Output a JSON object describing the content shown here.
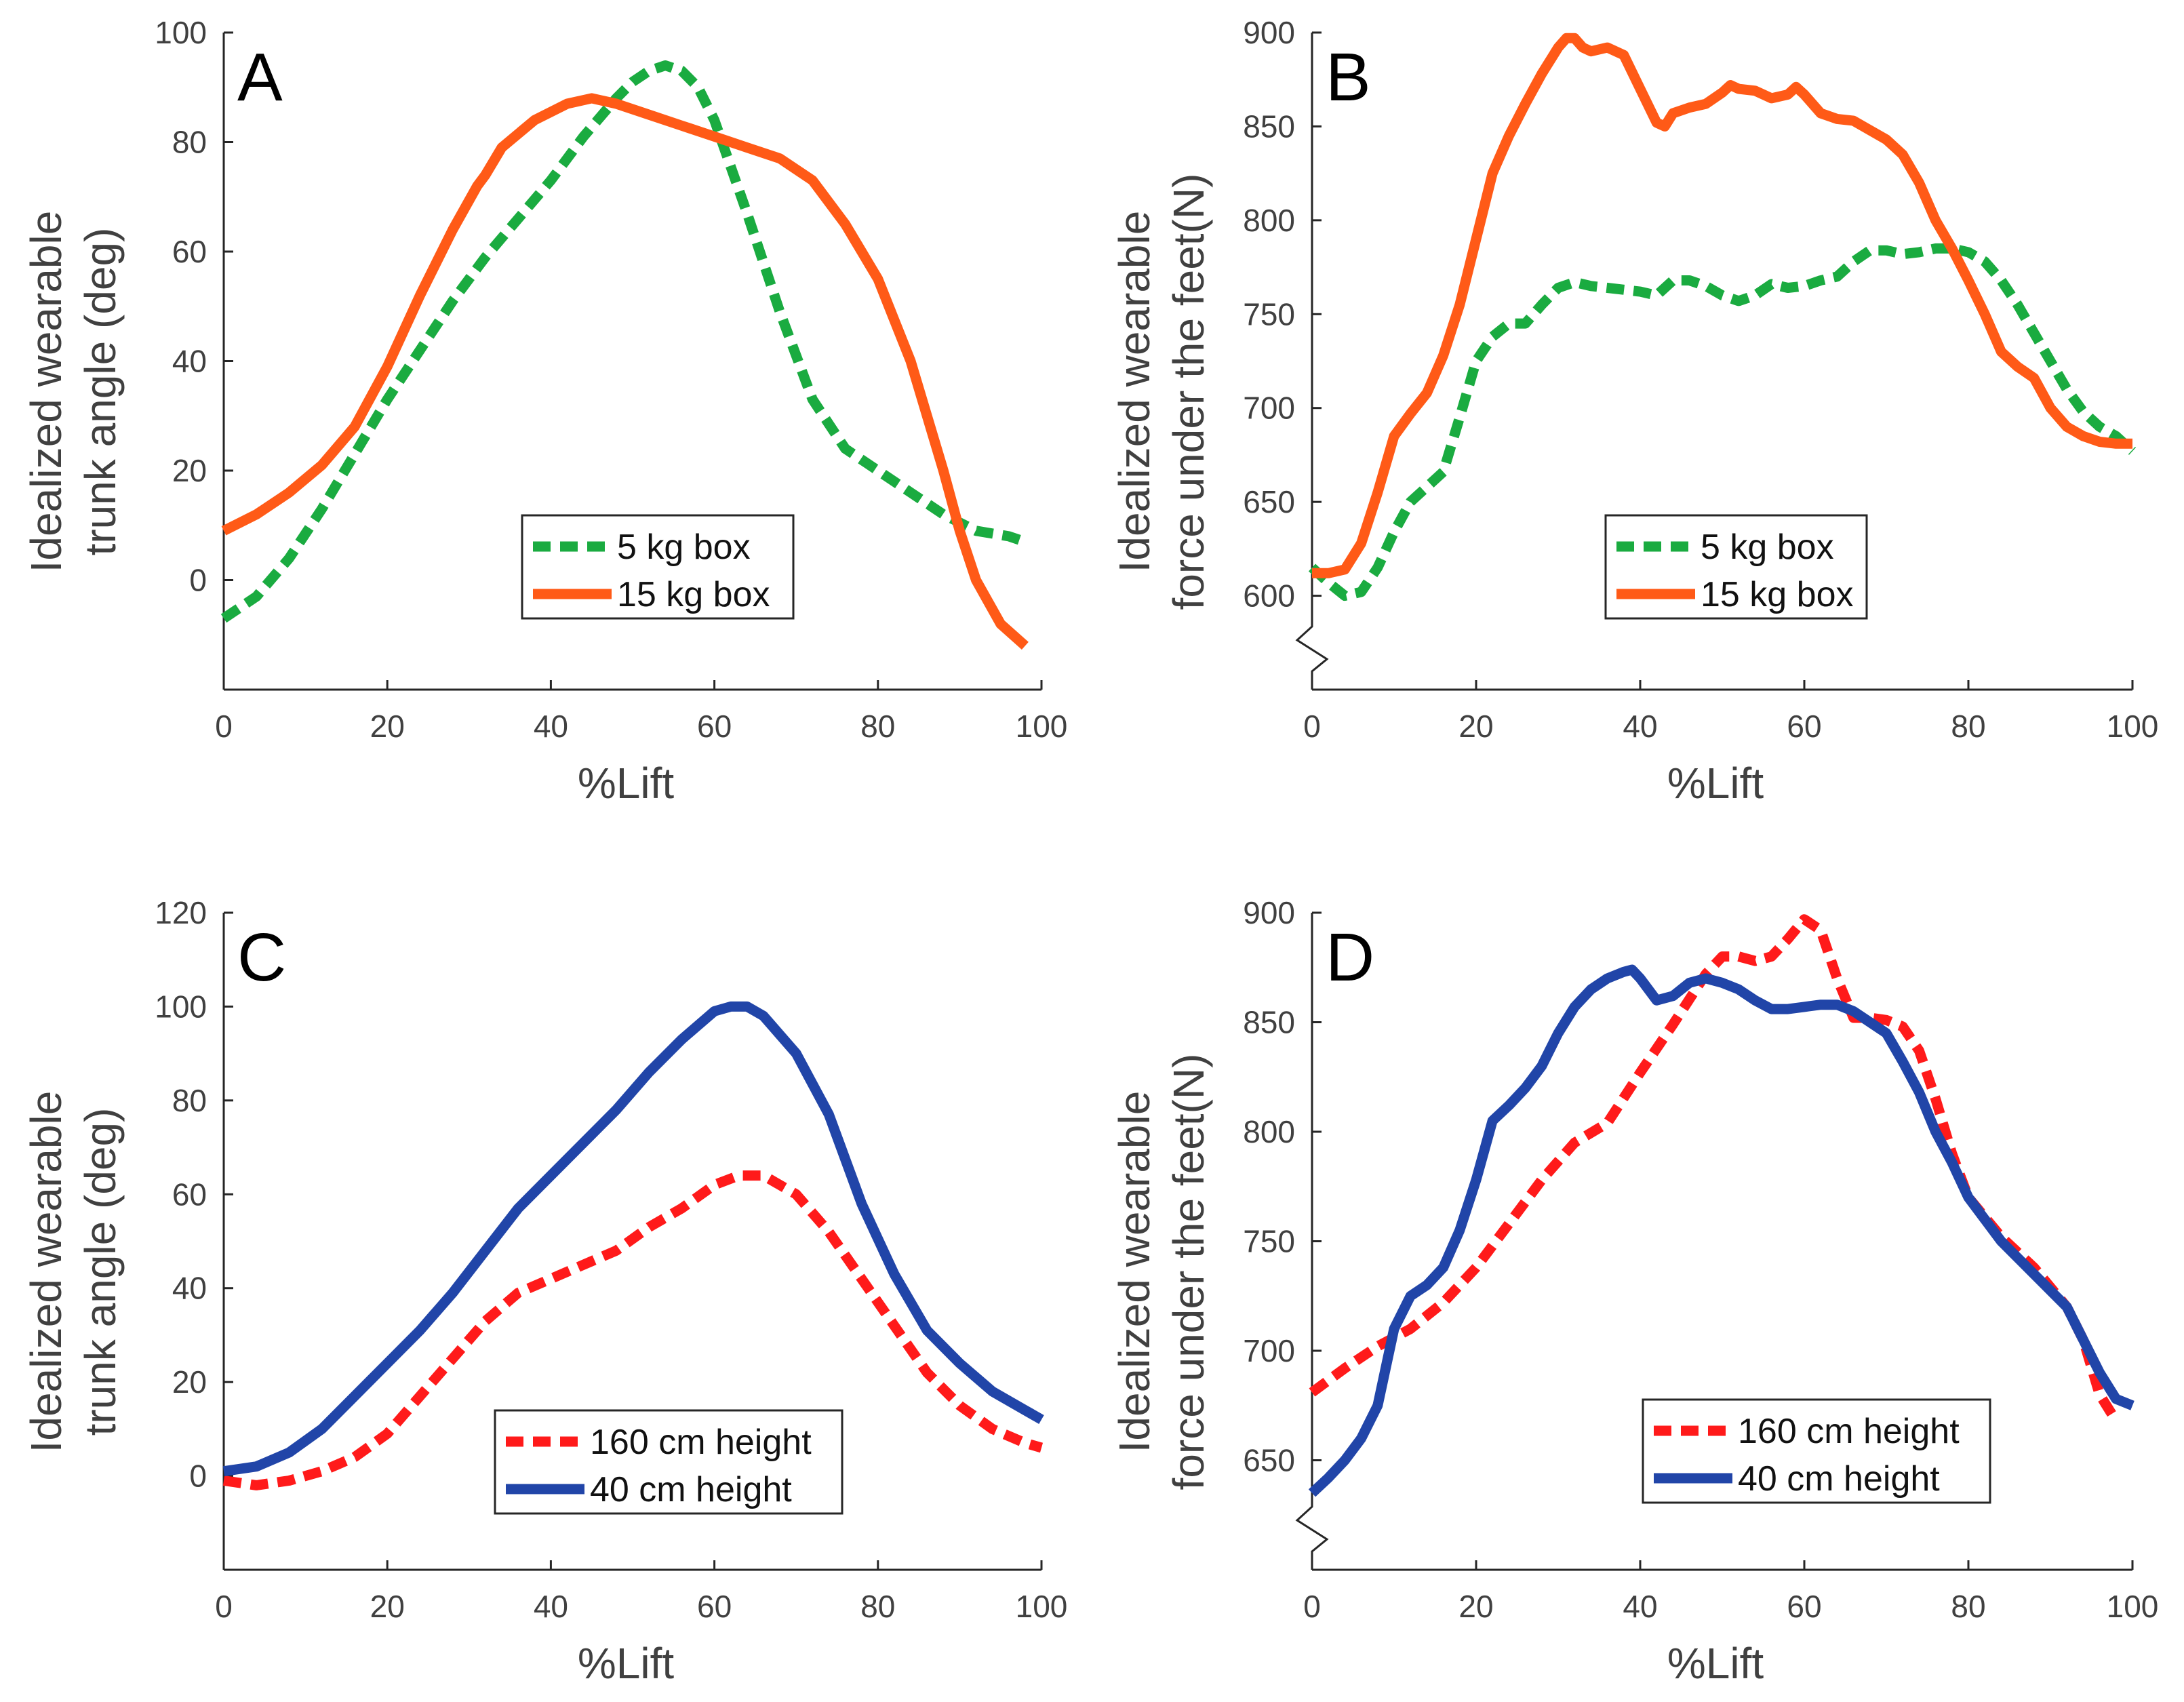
{
  "chart_data": [
    {
      "type": "line",
      "panel_label": "A",
      "xlabel": "%Lift",
      "ylabel_lines": [
        "Idealized wearable",
        "trunk angle (deg)"
      ],
      "xlim": [
        0,
        100
      ],
      "ylim": [
        -20,
        100
      ],
      "xticks": [
        0,
        20,
        40,
        60,
        80,
        100
      ],
      "yticks": [
        0,
        20,
        40,
        60,
        80,
        100
      ],
      "axis_break": false,
      "legend_position": "bottom-center",
      "series": [
        {
          "name": "5 kg box",
          "color": "#1aab40",
          "dash": "dashed",
          "x": [
            0,
            4,
            8,
            12,
            16,
            20,
            24,
            28,
            32,
            36,
            40,
            44,
            48,
            50,
            52,
            54,
            56,
            58,
            60,
            64,
            68,
            72,
            76,
            80,
            84,
            88,
            92,
            96,
            98
          ],
          "y": [
            -7,
            -3,
            4,
            13,
            23,
            33,
            42,
            51,
            59,
            66,
            73,
            81,
            88,
            91,
            93,
            94,
            93,
            90,
            84,
            67,
            49,
            33,
            24,
            20,
            16,
            12,
            9,
            8,
            7
          ]
        },
        {
          "name": "15 kg box",
          "color": "#ff5a17",
          "dash": "solid",
          "x": [
            0,
            4,
            8,
            12,
            16,
            20,
            24,
            28,
            31,
            32,
            34,
            38,
            42,
            45,
            48,
            52,
            56,
            60,
            64,
            68,
            72,
            76,
            80,
            84,
            88,
            90,
            92,
            95,
            98
          ],
          "y": [
            9,
            12,
            16,
            21,
            28,
            39,
            52,
            64,
            72,
            74,
            79,
            84,
            87,
            88,
            87,
            85,
            83,
            81,
            79,
            77,
            73,
            65,
            55,
            40,
            20,
            9,
            0,
            -8,
            -12
          ]
        }
      ]
    },
    {
      "type": "line",
      "panel_label": "B",
      "xlabel": "%Lift",
      "ylabel_lines": [
        "Idealized wearable",
        "force under the feet(N)"
      ],
      "xlim": [
        0,
        100
      ],
      "ylim": [
        550,
        900
      ],
      "xticks": [
        0,
        20,
        40,
        60,
        80,
        100
      ],
      "yticks": [
        600,
        650,
        700,
        750,
        800,
        850,
        900
      ],
      "axis_break": true,
      "legend_position": "bottom-center",
      "series": [
        {
          "name": "5 kg box",
          "color": "#1aab40",
          "dash": "dashed",
          "x": [
            0,
            2,
            4,
            6,
            8,
            10,
            12,
            14,
            16,
            18,
            20,
            22,
            24,
            26,
            28,
            30,
            32,
            34,
            36,
            40,
            42,
            44,
            46,
            48,
            50,
            52,
            54,
            56,
            58,
            60,
            62,
            64,
            66,
            68,
            70,
            72,
            74,
            76,
            78,
            80,
            82,
            84,
            86,
            88,
            90,
            92,
            94,
            96,
            98,
            100
          ],
          "y": [
            615,
            607,
            600,
            602,
            615,
            634,
            650,
            658,
            666,
            695,
            725,
            738,
            745,
            745,
            755,
            764,
            767,
            765,
            764,
            762,
            760,
            768,
            768,
            765,
            760,
            757,
            760,
            766,
            764,
            765,
            768,
            770,
            778,
            784,
            784,
            782,
            783,
            785,
            785,
            783,
            778,
            768,
            755,
            740,
            725,
            710,
            698,
            690,
            685,
            677
          ]
        },
        {
          "name": "15 kg box",
          "color": "#ff5a17",
          "dash": "solid",
          "x": [
            0,
            2,
            4,
            6,
            8,
            10,
            12,
            14,
            16,
            18,
            20,
            22,
            24,
            26,
            28,
            30,
            31,
            32,
            33,
            34,
            36,
            38,
            40,
            42,
            43,
            44,
            46,
            48,
            50,
            51,
            52,
            54,
            56,
            58,
            59,
            60,
            62,
            64,
            66,
            68,
            70,
            72,
            74,
            76,
            78,
            80,
            82,
            84,
            86,
            88,
            90,
            92,
            94,
            96,
            98,
            100
          ],
          "y": [
            612,
            612,
            614,
            628,
            655,
            685,
            697,
            708,
            728,
            755,
            790,
            825,
            845,
            862,
            878,
            892,
            897,
            897,
            892,
            890,
            892,
            888,
            870,
            852,
            850,
            857,
            860,
            862,
            868,
            872,
            870,
            869,
            865,
            867,
            871,
            867,
            857,
            854,
            853,
            848,
            843,
            835,
            820,
            800,
            785,
            768,
            750,
            730,
            722,
            716,
            700,
            690,
            685,
            682,
            681,
            681
          ]
        }
      ]
    },
    {
      "type": "line",
      "panel_label": "C",
      "xlabel": "%Lift",
      "ylabel_lines": [
        "Idealized wearable",
        "trunk angle (deg)"
      ],
      "xlim": [
        0,
        100
      ],
      "ylim": [
        -20,
        120
      ],
      "xticks": [
        0,
        20,
        40,
        60,
        80,
        100
      ],
      "yticks": [
        0,
        20,
        40,
        60,
        80,
        100,
        120
      ],
      "axis_break": false,
      "legend_position": "bottom-right",
      "series": [
        {
          "name": "160 cm height",
          "color": "#ff1a1a",
          "dash": "dashed",
          "x": [
            0,
            4,
            8,
            12,
            16,
            20,
            24,
            28,
            32,
            36,
            40,
            44,
            48,
            52,
            56,
            60,
            63,
            66,
            70,
            74,
            78,
            82,
            86,
            90,
            94,
            98,
            100
          ],
          "y": [
            -1,
            -2,
            -1,
            1,
            4,
            9,
            17,
            25,
            33,
            39,
            42,
            45,
            48,
            53,
            57,
            62,
            64,
            64,
            60,
            52,
            42,
            32,
            22,
            15,
            10,
            7,
            6
          ]
        },
        {
          "name": "40 cm height",
          "color": "#2145a8",
          "dash": "solid",
          "x": [
            0,
            4,
            8,
            12,
            16,
            20,
            24,
            28,
            32,
            36,
            40,
            44,
            48,
            52,
            56,
            60,
            62,
            64,
            66,
            70,
            74,
            78,
            82,
            86,
            90,
            94,
            98,
            100
          ],
          "y": [
            1,
            2,
            5,
            10,
            17,
            24,
            31,
            39,
            48,
            57,
            64,
            71,
            78,
            86,
            93,
            99,
            100,
            100,
            98,
            90,
            77,
            58,
            43,
            31,
            24,
            18,
            14,
            12
          ]
        }
      ]
    },
    {
      "type": "line",
      "panel_label": "D",
      "xlabel": "%Lift",
      "ylabel_lines": [
        "Idealized wearable",
        "force under the feet(N)"
      ],
      "xlim": [
        0,
        100
      ],
      "ylim": [
        600,
        900
      ],
      "xticks": [
        0,
        20,
        40,
        60,
        80,
        100
      ],
      "yticks": [
        650,
        700,
        750,
        800,
        850,
        900
      ],
      "axis_break": true,
      "legend_position": "bottom-center",
      "series": [
        {
          "name": "160 cm height",
          "color": "#ff1a1a",
          "dash": "dashed",
          "x": [
            0,
            4,
            8,
            12,
            16,
            20,
            24,
            28,
            32,
            36,
            40,
            44,
            48,
            50,
            52,
            54,
            56,
            58,
            60,
            62,
            64,
            66,
            68,
            70,
            72,
            74,
            76,
            78,
            80,
            84,
            88,
            92,
            94,
            96,
            98
          ],
          "y": [
            681,
            692,
            702,
            710,
            722,
            738,
            758,
            778,
            795,
            804,
            827,
            849,
            872,
            880,
            880,
            878,
            880,
            888,
            897,
            892,
            870,
            852,
            852,
            851,
            848,
            837,
            815,
            790,
            770,
            752,
            738,
            720,
            705,
            680,
            668
          ]
        },
        {
          "name": "40 cm height",
          "color": "#2145a8",
          "dash": "solid",
          "x": [
            0,
            2,
            4,
            6,
            8,
            10,
            12,
            14,
            16,
            18,
            20,
            22,
            24,
            26,
            28,
            30,
            32,
            34,
            36,
            38,
            39,
            40,
            42,
            44,
            46,
            48,
            50,
            52,
            54,
            56,
            58,
            60,
            62,
            64,
            66,
            68,
            70,
            72,
            74,
            76,
            78,
            80,
            84,
            88,
            92,
            94,
            96,
            98,
            100
          ],
          "y": [
            635,
            642,
            650,
            660,
            675,
            710,
            725,
            730,
            738,
            755,
            778,
            805,
            812,
            820,
            830,
            845,
            857,
            865,
            870,
            873,
            874,
            870,
            860,
            862,
            868,
            870,
            868,
            865,
            860,
            856,
            856,
            857,
            858,
            858,
            855,
            850,
            845,
            832,
            818,
            800,
            786,
            770,
            750,
            735,
            720,
            705,
            690,
            678,
            675
          ]
        }
      ]
    }
  ]
}
